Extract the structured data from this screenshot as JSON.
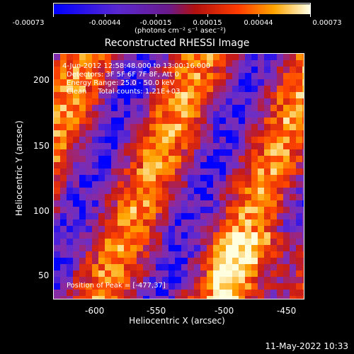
{
  "colorbar": {
    "tick_labels": [
      "-0.00073",
      "-0.00044",
      "-0.00015",
      "0.00015",
      "0.00044",
      "0.00073"
    ],
    "units_label": "(photons cm⁻² s⁻¹ asec⁻²)"
  },
  "plot": {
    "title": "Reconstructed RHESSI Image",
    "info": {
      "line1": "4-Jun-2012 12:58:48.000 to 13:00:16.000",
      "line2": "Detectors: 3F 5F 6F 7F 8F, Att 0",
      "line3": "Energy Range: 25.0 - 50.0 keV",
      "line4": "Clean     Total counts: 1.21E+03"
    },
    "peak_text": "Position of Peak = [-477,37]",
    "xlabel": "Heliocentric X (arcsec)",
    "ylabel": "Heliocentric Y (arcsec)",
    "xticks": [
      "-600",
      "-550",
      "-500",
      "-450"
    ],
    "yticks": [
      "200",
      "150",
      "100",
      "50"
    ]
  },
  "footer": {
    "date_stamp": "11-May-2022 10:33"
  },
  "colors": {
    "background": "#000000",
    "colormap": [
      "#0000ff",
      "#6a2ec8",
      "#8f2a9a",
      "#c41a1a",
      "#ff4500",
      "#ffa500",
      "#ffffe0"
    ]
  }
}
